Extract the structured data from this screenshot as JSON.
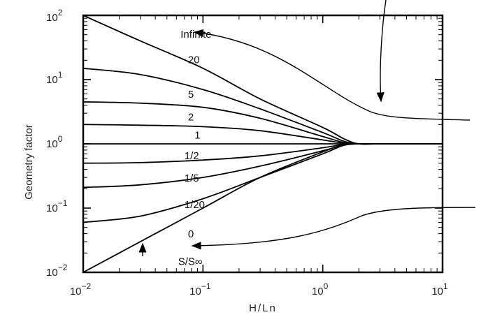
{
  "chart_data": {
    "type": "line",
    "title": "",
    "xlabel": "H/Ln",
    "ylabel": "Geometry factor",
    "x_scale": "log",
    "y_scale": "log",
    "xlim": [
      0.01,
      10
    ],
    "ylim": [
      0.01,
      100
    ],
    "grid": false,
    "legend": "none",
    "x_ticks": [
      {
        "value": 0.01,
        "base": "10",
        "exp": "−2"
      },
      {
        "value": 0.1,
        "base": "10",
        "exp": "−1"
      },
      {
        "value": 1,
        "base": "10",
        "exp": "0"
      },
      {
        "value": 10,
        "base": "10",
        "exp": "1"
      }
    ],
    "y_ticks": [
      {
        "value": 0.01,
        "base": "10",
        "exp": "−2"
      },
      {
        "value": 0.1,
        "base": "10",
        "exp": "−1"
      },
      {
        "value": 1,
        "base": "10",
        "exp": "0"
      },
      {
        "value": 10,
        "base": "10",
        "exp": "1"
      },
      {
        "value": 100,
        "base": "10",
        "exp": "2"
      }
    ],
    "series": [
      {
        "name": "Infinite",
        "x": [
          0.01,
          0.03,
          0.1,
          0.3,
          1,
          1.5,
          2,
          3,
          10
        ],
        "y": [
          100,
          40,
          15,
          5,
          1.8,
          1.2,
          1.0,
          1.0,
          1.0
        ]
      },
      {
        "name": "20",
        "x": [
          0.01,
          0.03,
          0.1,
          0.3,
          1,
          1.5,
          2,
          3,
          10
        ],
        "y": [
          15,
          12,
          7,
          3.5,
          1.5,
          1.1,
          1.0,
          1.0,
          1.0
        ]
      },
      {
        "name": "5",
        "x": [
          0.01,
          0.03,
          0.1,
          0.3,
          1,
          1.5,
          2,
          3,
          10
        ],
        "y": [
          4.5,
          4.3,
          3.7,
          2.5,
          1.3,
          1.05,
          1.0,
          1.0,
          1.0
        ]
      },
      {
        "name": "2",
        "x": [
          0.01,
          0.03,
          0.1,
          0.3,
          1,
          1.5,
          2,
          3,
          10
        ],
        "y": [
          2.0,
          1.95,
          1.85,
          1.6,
          1.15,
          1.02,
          1.0,
          1.0,
          1.0
        ]
      },
      {
        "name": "1",
        "x": [
          0.01,
          0.1,
          1,
          2,
          10
        ],
        "y": [
          1.0,
          1.0,
          1.0,
          1.0,
          1.0
        ]
      },
      {
        "name": "1/2",
        "x": [
          0.01,
          0.03,
          0.1,
          0.3,
          1,
          1.5,
          2,
          3,
          10
        ],
        "y": [
          0.5,
          0.51,
          0.56,
          0.65,
          0.87,
          0.98,
          1.0,
          1.0,
          1.0
        ]
      },
      {
        "name": "1/5",
        "x": [
          0.01,
          0.03,
          0.1,
          0.3,
          1,
          1.5,
          2,
          3,
          10
        ],
        "y": [
          0.21,
          0.23,
          0.3,
          0.45,
          0.78,
          0.96,
          1.0,
          1.0,
          1.0
        ]
      },
      {
        "name": "1/20",
        "x": [
          0.01,
          0.03,
          0.1,
          0.3,
          1,
          1.5,
          2,
          3,
          10
        ],
        "y": [
          0.06,
          0.075,
          0.14,
          0.3,
          0.7,
          0.95,
          1.0,
          1.0,
          1.0
        ]
      },
      {
        "name": "0",
        "x": [
          0.01,
          0.03,
          0.1,
          0.3,
          1,
          1.5,
          2,
          3,
          10
        ],
        "y": [
          0.01,
          0.03,
          0.1,
          0.3,
          0.75,
          0.95,
          1.0,
          1.0,
          1.0
        ]
      }
    ],
    "curve_labels": [
      {
        "text": "Infinite",
        "x": 0.065,
        "y": 45
      },
      {
        "text": "20",
        "x": 0.075,
        "y": 18
      },
      {
        "text": "5",
        "x": 0.075,
        "y": 5.2
      },
      {
        "text": "2",
        "x": 0.075,
        "y": 2.3
      },
      {
        "text": "1",
        "x": 0.085,
        "y": 1.2
      },
      {
        "text": "1/2",
        "x": 0.07,
        "y": 0.58
      },
      {
        "text": "1/5",
        "x": 0.07,
        "y": 0.26
      },
      {
        "text": "1/20",
        "x": 0.07,
        "y": 0.1
      },
      {
        "text": "0",
        "x": 0.075,
        "y": 0.035
      },
      {
        "text": "S/S∞",
        "x": 0.062,
        "y": 0.013
      }
    ]
  }
}
